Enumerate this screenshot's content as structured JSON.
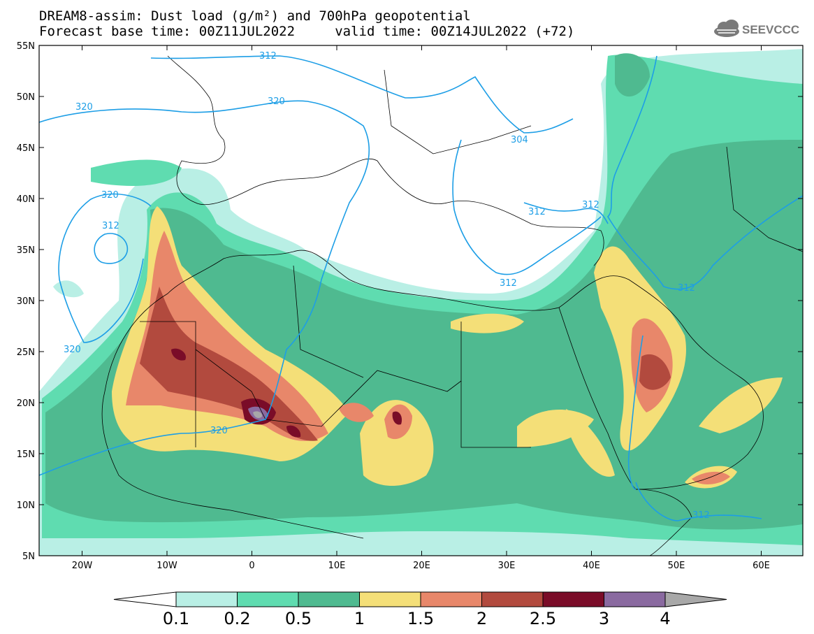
{
  "header": {
    "title_line1": "DREAM8-assim: Dust load (g/m²) and 700hPa geopotential",
    "title_line2": "Forecast base time: 00Z11JUL2022     valid time: 00Z14JUL2022 (+72)",
    "logo_text": "SEEVCCC",
    "logo_icon": "cloud-icon"
  },
  "map": {
    "lat_ticks": [
      "55N",
      "50N",
      "45N",
      "40N",
      "35N",
      "30N",
      "25N",
      "20N",
      "15N",
      "10N",
      "5N"
    ],
    "lon_ticks": [
      "20W",
      "10W",
      "0",
      "10E",
      "20E",
      "30E",
      "40E",
      "50E",
      "60E"
    ],
    "contour_labels": [
      "312",
      "320",
      "320",
      "320",
      "312",
      "320",
      "304",
      "312",
      "312",
      "312",
      "312",
      "320",
      "312"
    ],
    "colors": {
      "c0": "#b9efe5",
      "c1": "#5fdcb0",
      "c2": "#4fba90",
      "c3": "#f4df78",
      "c4": "#e8876a",
      "c5": "#b24a3e",
      "c6": "#7a0c28",
      "c7": "#8a6aa0",
      "c8": "#a8a8a8",
      "contour": "#1d9ee6",
      "border": "#000000"
    }
  },
  "colorbar": {
    "labels": [
      "0.1",
      "0.2",
      "0.5",
      "1",
      "1.5",
      "2",
      "2.5",
      "3",
      "4"
    ]
  }
}
